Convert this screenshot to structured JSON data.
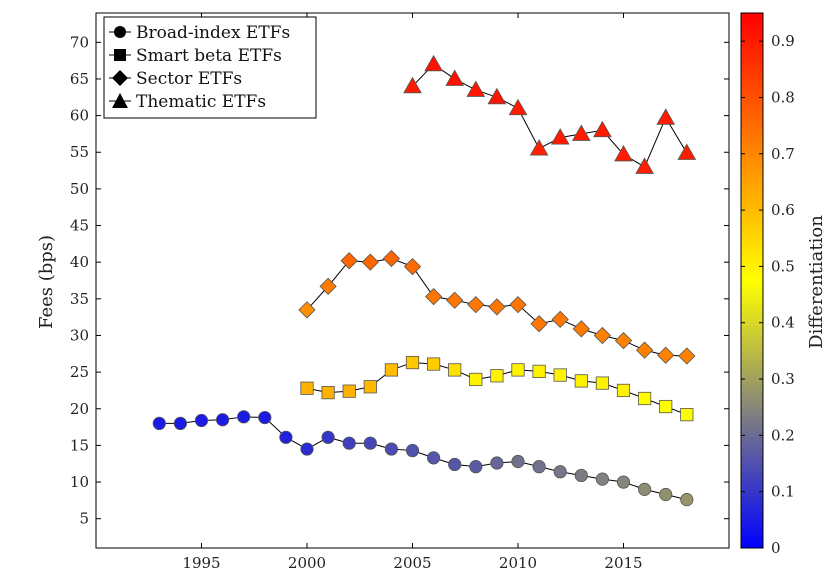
{
  "chart_data": {
    "type": "scatter",
    "title": "",
    "xlabel": "",
    "ylabel": "Fees (bps)",
    "xlim": [
      1990,
      2020
    ],
    "ylim": [
      1,
      74
    ],
    "xticks": [
      1995,
      2000,
      2005,
      2010,
      2015
    ],
    "yticks": [
      5,
      10,
      15,
      20,
      25,
      30,
      35,
      40,
      45,
      50,
      55,
      60,
      65,
      70
    ],
    "grid": false,
    "legend_position": "top-left",
    "colorbar": {
      "label": "Differentiation",
      "range": [
        0,
        0.95
      ],
      "ticks": [
        0,
        0.1,
        0.2,
        0.3,
        0.4,
        0.5,
        0.6,
        0.7,
        0.8,
        0.9
      ],
      "colormap": [
        "#0000ff",
        "#ffff00",
        "#ff0000"
      ]
    },
    "series": [
      {
        "name": "Broad-index ETFs",
        "marker": "circle",
        "x": [
          1993,
          1994,
          1995,
          1996,
          1997,
          1998,
          1999,
          2000,
          2001,
          2002,
          2003,
          2004,
          2005,
          2006,
          2007,
          2008,
          2009,
          2010,
          2011,
          2012,
          2013,
          2014,
          2015,
          2016,
          2017,
          2018
        ],
        "y": [
          18.0,
          18.0,
          18.4,
          18.5,
          18.9,
          18.8,
          16.1,
          14.5,
          16.1,
          15.3,
          15.3,
          14.5,
          14.3,
          13.3,
          12.4,
          12.1,
          12.6,
          12.8,
          12.1,
          11.4,
          10.9,
          10.4,
          10.0,
          9.0,
          8.3,
          7.6
        ],
        "differentiation": [
          0.05,
          0.05,
          0.05,
          0.05,
          0.05,
          0.05,
          0.06,
          0.08,
          0.1,
          0.12,
          0.13,
          0.14,
          0.15,
          0.16,
          0.16,
          0.17,
          0.19,
          0.21,
          0.21,
          0.22,
          0.23,
          0.24,
          0.25,
          0.26,
          0.27,
          0.28
        ]
      },
      {
        "name": "Smart beta ETFs",
        "marker": "square",
        "x": [
          2000,
          2001,
          2002,
          2003,
          2004,
          2005,
          2006,
          2007,
          2008,
          2009,
          2010,
          2011,
          2012,
          2013,
          2014,
          2015,
          2016,
          2017,
          2018
        ],
        "y": [
          22.8,
          22.2,
          22.4,
          23.0,
          25.3,
          26.3,
          26.1,
          25.3,
          24.0,
          24.5,
          25.3,
          25.1,
          24.6,
          23.8,
          23.5,
          22.5,
          21.4,
          20.3,
          19.2
        ],
        "differentiation": [
          0.62,
          0.62,
          0.62,
          0.61,
          0.6,
          0.58,
          0.57,
          0.53,
          0.5,
          0.5,
          0.5,
          0.5,
          0.5,
          0.5,
          0.5,
          0.5,
          0.48,
          0.47,
          0.47
        ]
      },
      {
        "name": "Sector ETFs",
        "marker": "diamond",
        "x": [
          2000,
          2001,
          2002,
          2003,
          2004,
          2005,
          2006,
          2007,
          2008,
          2009,
          2010,
          2011,
          2012,
          2013,
          2014,
          2015,
          2016,
          2017,
          2018
        ],
        "y": [
          33.5,
          36.7,
          40.2,
          40.0,
          40.5,
          39.4,
          35.3,
          34.8,
          34.2,
          33.9,
          34.2,
          31.6,
          32.2,
          30.9,
          30.0,
          29.3,
          28.0,
          27.3,
          27.2
        ],
        "differentiation": [
          0.68,
          0.72,
          0.76,
          0.76,
          0.76,
          0.75,
          0.73,
          0.73,
          0.73,
          0.73,
          0.73,
          0.73,
          0.73,
          0.72,
          0.71,
          0.71,
          0.71,
          0.71,
          0.71
        ]
      },
      {
        "name": "Thematic ETFs",
        "marker": "triangle",
        "x": [
          2005,
          2006,
          2007,
          2008,
          2009,
          2010,
          2011,
          2012,
          2013,
          2014,
          2015,
          2016,
          2017,
          2018
        ],
        "y": [
          64.0,
          67.0,
          65.0,
          63.5,
          62.5,
          61.0,
          55.5,
          57.0,
          57.5,
          58.0,
          54.7,
          53.0,
          59.7,
          54.9
        ],
        "differentiation": [
          0.9,
          0.92,
          0.92,
          0.91,
          0.91,
          0.9,
          0.89,
          0.9,
          0.9,
          0.9,
          0.9,
          0.89,
          0.9,
          0.9
        ]
      }
    ]
  }
}
